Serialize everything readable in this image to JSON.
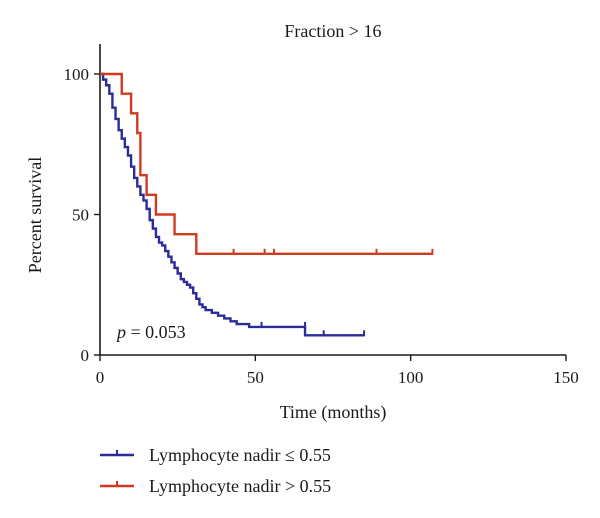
{
  "chart_data": {
    "type": "line",
    "subtype": "kaplan-meier",
    "title": "Fraction > 16",
    "xlabel": "Time (months)",
    "ylabel": "Percent survival",
    "xlim": [
      0,
      150
    ],
    "ylim": [
      0,
      100
    ],
    "xticks": [
      0,
      50,
      100,
      150
    ],
    "yticks": [
      0,
      50,
      100
    ],
    "annotation": {
      "italic": "p",
      "rest": " = 0.053"
    },
    "legend_position": "bottom-left",
    "series": [
      {
        "name": "Lymphocyte nadir ≤ 0.55",
        "color": "#2b2c99",
        "x": [
          0,
          1,
          2,
          3,
          4,
          5,
          6,
          7,
          8,
          9,
          10,
          11,
          12,
          13,
          14,
          15,
          16,
          17,
          18,
          19,
          20,
          21,
          22,
          23,
          24,
          25,
          26,
          27,
          28,
          29,
          30,
          31,
          32,
          33,
          34,
          36,
          38,
          40,
          42,
          44,
          46,
          48,
          50,
          55,
          60,
          66,
          67,
          85
        ],
        "y": [
          100,
          98,
          96,
          93,
          88,
          84,
          80,
          77,
          74,
          71,
          67,
          63,
          60,
          57,
          55,
          52,
          48,
          45,
          42,
          40,
          39,
          37,
          35,
          33,
          31,
          29,
          27,
          26,
          25,
          24,
          22,
          20,
          18,
          17,
          16,
          15,
          14,
          13,
          12,
          11,
          11,
          10,
          10,
          10,
          10,
          7,
          7,
          7
        ],
        "censor_x": [
          52,
          66,
          72,
          85
        ],
        "censor_y": [
          10,
          10,
          7,
          7
        ]
      },
      {
        "name": "Lymphocyte nadir > 0.55",
        "color": "#d03a22",
        "x": [
          0,
          7,
          10,
          12,
          13,
          15,
          18,
          24,
          31,
          107
        ],
        "y": [
          100,
          93,
          86,
          79,
          64,
          57,
          50,
          43,
          36,
          36
        ],
        "censor_x": [
          43,
          53,
          56,
          89,
          107
        ],
        "censor_y": [
          36,
          36,
          36,
          36,
          36
        ]
      }
    ]
  }
}
